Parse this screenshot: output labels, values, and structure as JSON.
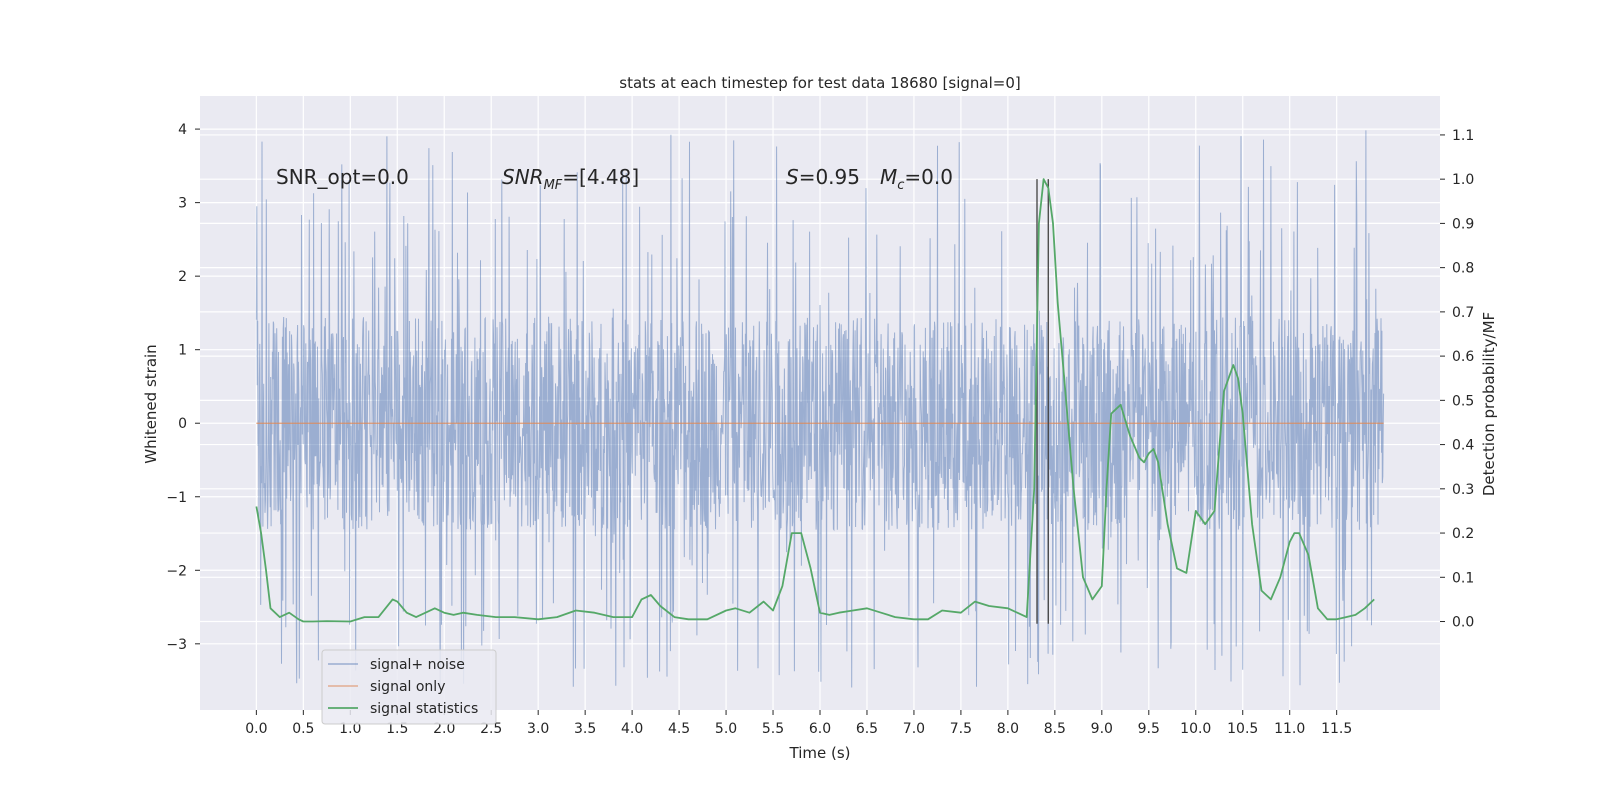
{
  "chart_data": {
    "type": "line",
    "title": "stats at each timestep for test data 18680 [signal=0]",
    "xlabel": "Time (s)",
    "ylabel_left": "Whitened strain",
    "ylabel_right": "Detection probability/MF",
    "xlim": [
      -0.6,
      12.6
    ],
    "ylim_left": [
      -3.9,
      4.45
    ],
    "ylim_right": [
      -0.2,
      1.188
    ],
    "x_ticks": [
      "0.0",
      "0.5",
      "1.0",
      "1.5",
      "2.0",
      "2.5",
      "3.0",
      "3.5",
      "4.0",
      "4.5",
      "5.0",
      "5.5",
      "6.0",
      "6.5",
      "7.0",
      "7.5",
      "8.0",
      "8.5",
      "9.0",
      "9.5",
      "10.0",
      "10.5",
      "11.0",
      "11.5"
    ],
    "y_ticks_left": [
      "−3",
      "−2",
      "−1",
      "0",
      "1",
      "2",
      "3",
      "4"
    ],
    "y_ticks_right": [
      "0.0",
      "0.1",
      "0.2",
      "0.3",
      "0.4",
      "0.5",
      "0.6",
      "0.7",
      "0.8",
      "0.9",
      "1.0",
      "1.1"
    ],
    "grid": true,
    "annotations": {
      "snr_opt": "SNR_opt=0.0",
      "snr_mf_prefix": "SNR",
      "snr_mf_sub": "MF",
      "snr_mf_suffix": "=[4.48]",
      "s_prefix": "S",
      "s_value": "=0.95",
      "mc_prefix": "M",
      "mc_sub": "c",
      "mc_value": "=0.0"
    },
    "legend": {
      "placement": "lower-left",
      "entries": [
        "signal+ noise",
        "signal only",
        "signal statistics"
      ]
    },
    "vertical_lines_x": [
      8.31,
      8.43
    ],
    "series": [
      {
        "name": "signal+ noise",
        "color": "#4c72b0",
        "x_range": [
          0.0,
          12.0
        ],
        "noise_envelope": {
          "core_amplitude": 1.45,
          "max": 4.1,
          "min": -3.6
        }
      },
      {
        "name": "signal only",
        "color": "#dd8452",
        "x": [
          0.0,
          12.0
        ],
        "y": [
          0.0,
          0.0
        ]
      },
      {
        "name": "signal statistics",
        "color": "#55a868",
        "x": [
          0.0,
          0.05,
          0.1,
          0.15,
          0.25,
          0.35,
          0.45,
          0.5,
          0.6,
          0.75,
          1.0,
          1.15,
          1.3,
          1.45,
          1.5,
          1.6,
          1.7,
          1.8,
          1.9,
          2.0,
          2.1,
          2.2,
          2.35,
          2.55,
          2.75,
          3.0,
          3.2,
          3.4,
          3.6,
          3.8,
          4.0,
          4.1,
          4.2,
          4.3,
          4.45,
          4.6,
          4.8,
          5.0,
          5.1,
          5.25,
          5.4,
          5.5,
          5.6,
          5.7,
          5.8,
          5.9,
          6.0,
          6.1,
          6.2,
          6.35,
          6.5,
          6.65,
          6.8,
          7.0,
          7.15,
          7.3,
          7.5,
          7.65,
          7.8,
          8.0,
          8.1,
          8.2,
          8.28,
          8.33,
          8.38,
          8.43,
          8.48,
          8.53,
          8.6,
          8.7,
          8.8,
          8.9,
          9.0,
          9.05,
          9.1,
          9.15,
          9.2,
          9.3,
          9.4,
          9.45,
          9.5,
          9.55,
          9.6,
          9.7,
          9.8,
          9.9,
          10.0,
          10.1,
          10.2,
          10.25,
          10.3,
          10.4,
          10.45,
          10.5,
          10.6,
          10.7,
          10.8,
          10.9,
          11.0,
          11.05,
          11.1,
          11.2,
          11.3,
          11.4,
          11.5,
          11.6,
          11.7,
          11.8,
          11.9
        ],
        "y": [
          0.26,
          0.2,
          0.12,
          0.03,
          0.01,
          0.02,
          0.005,
          0.0,
          0.0,
          0.001,
          0.0,
          0.01,
          0.01,
          0.05,
          0.045,
          0.02,
          0.01,
          0.02,
          0.03,
          0.02,
          0.015,
          0.02,
          0.015,
          0.01,
          0.01,
          0.005,
          0.01,
          0.025,
          0.02,
          0.01,
          0.01,
          0.05,
          0.06,
          0.035,
          0.01,
          0.005,
          0.005,
          0.025,
          0.03,
          0.02,
          0.045,
          0.025,
          0.08,
          0.2,
          0.2,
          0.12,
          0.02,
          0.015,
          0.02,
          0.025,
          0.03,
          0.02,
          0.01,
          0.005,
          0.005,
          0.025,
          0.02,
          0.045,
          0.035,
          0.03,
          0.02,
          0.01,
          0.3,
          0.9,
          1.0,
          0.98,
          0.9,
          0.72,
          0.55,
          0.3,
          0.1,
          0.05,
          0.08,
          0.3,
          0.47,
          0.48,
          0.49,
          0.42,
          0.37,
          0.36,
          0.38,
          0.39,
          0.36,
          0.22,
          0.12,
          0.11,
          0.25,
          0.22,
          0.25,
          0.39,
          0.52,
          0.58,
          0.55,
          0.47,
          0.22,
          0.07,
          0.05,
          0.1,
          0.18,
          0.2,
          0.2,
          0.15,
          0.03,
          0.005,
          0.005,
          0.01,
          0.015,
          0.03,
          0.05
        ]
      }
    ]
  }
}
